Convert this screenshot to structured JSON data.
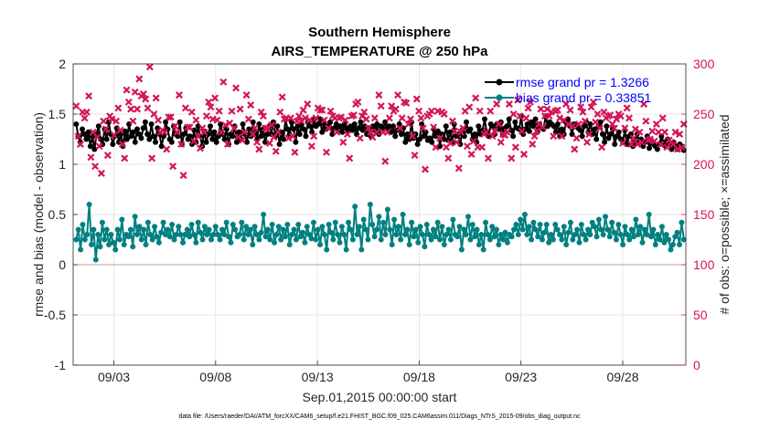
{
  "chart_data": {
    "type": "line",
    "title": "Southern Hemisphere",
    "subtitle": "AIRS_TEMPERATURE @ 250 hPa",
    "xlabel": "Sep.01,2015 00:00:00 start",
    "ylabel": "rmse and bias (model - observation)",
    "ylabel_right": "# of obs: o=possible; ×=assimilated",
    "ylim": [
      -1,
      2
    ],
    "ylim_right": [
      0,
      300
    ],
    "xlim": [
      1.0,
      31.1
    ],
    "yticks": [
      "-1",
      "-0.5",
      "0",
      "0.5",
      "1",
      "1.5",
      "2"
    ],
    "yticks_right": [
      "0",
      "50",
      "100",
      "150",
      "200",
      "250",
      "300"
    ],
    "xticks": [
      {
        "label": "09/03",
        "x": 3
      },
      {
        "label": "09/08",
        "x": 8
      },
      {
        "label": "09/13",
        "x": 13
      },
      {
        "label": "09/18",
        "x": 18
      },
      {
        "label": "09/23",
        "x": 23
      },
      {
        "label": "09/28",
        "x": 28
      }
    ],
    "legend": [
      {
        "label": "rmse grand pr = 1.3266",
        "color": "#000000"
      },
      {
        "label": "bias grand pr = 0.33851",
        "color": "#008080"
      }
    ],
    "series": [
      {
        "name": "rmse",
        "axis": "left",
        "color": "#000000",
        "values": [
          1.4,
          1.28,
          1.22,
          1.35,
          1.3,
          1.25,
          1.32,
          1.18,
          1.28,
          1.15,
          1.3,
          1.38,
          1.25,
          1.2,
          1.35,
          1.25,
          1.42,
          1.3,
          1.2,
          1.28,
          1.36,
          1.22,
          1.3,
          1.18,
          1.33,
          1.25,
          1.4,
          1.28,
          1.32,
          1.22,
          1.35,
          1.3,
          1.26,
          1.36,
          1.42,
          1.3,
          1.25,
          1.4,
          1.28,
          1.22,
          1.36,
          1.3,
          1.18,
          1.28,
          1.42,
          1.35,
          1.25,
          1.22,
          1.38,
          1.3,
          1.28,
          1.42,
          1.2,
          1.3,
          1.36,
          1.25,
          1.28,
          1.2,
          1.34,
          1.22,
          1.38,
          1.28,
          1.18,
          1.33,
          1.22,
          1.3,
          1.38,
          1.25,
          1.32,
          1.22,
          1.28,
          1.4,
          1.3,
          1.25,
          1.35,
          1.2,
          1.3,
          1.28,
          1.38,
          1.22,
          1.32,
          1.25,
          1.4,
          1.3,
          1.22,
          1.35,
          1.28,
          1.42,
          1.32,
          1.25,
          1.4,
          1.28,
          1.35,
          1.22,
          1.3,
          1.38,
          1.3,
          1.42,
          1.28,
          1.38,
          1.2,
          1.32,
          1.25,
          1.45,
          1.35,
          1.3,
          1.42,
          1.35,
          1.22,
          1.38,
          1.3,
          1.4,
          1.35,
          1.28,
          1.42,
          1.38,
          1.32,
          1.45,
          1.38,
          1.4,
          1.45,
          1.32,
          1.4,
          1.35,
          1.38,
          1.42,
          1.3,
          1.36,
          1.4,
          1.34,
          1.38,
          1.32,
          1.4,
          1.36,
          1.33,
          1.38,
          1.34,
          1.4,
          1.3,
          1.36,
          1.42,
          1.34,
          1.38,
          1.3,
          1.36,
          1.28,
          1.38,
          1.34,
          1.4,
          1.3,
          1.38,
          1.35,
          1.42,
          1.36,
          1.38,
          1.32,
          1.38,
          1.28,
          1.34,
          1.4,
          1.3,
          1.36,
          1.22,
          1.3,
          1.25,
          1.42,
          1.26,
          1.3,
          1.2,
          1.25,
          1.4,
          1.28,
          1.32,
          1.24,
          1.26,
          1.22,
          1.35,
          1.28,
          1.33,
          1.18,
          1.3,
          1.25,
          1.38,
          1.24,
          1.32,
          1.22,
          1.4,
          1.28,
          1.3,
          1.2,
          1.34,
          1.28,
          1.42,
          1.33,
          1.35,
          1.25,
          1.3,
          1.22,
          1.38,
          1.3,
          1.34,
          1.45,
          1.32,
          1.28,
          1.4,
          1.38,
          1.3,
          1.4,
          1.35,
          1.42,
          1.3,
          1.36,
          1.38,
          1.45,
          1.34,
          1.28,
          1.42,
          1.36,
          1.35,
          1.48,
          1.3,
          1.35,
          1.4,
          1.33,
          1.42,
          1.38,
          1.45,
          1.32,
          1.4,
          1.36,
          1.35,
          1.48,
          1.38,
          1.42,
          1.4,
          1.38,
          1.32,
          1.4,
          1.28,
          1.35,
          1.3,
          1.42,
          1.45,
          1.38,
          1.3,
          1.4,
          1.4,
          1.36,
          1.34,
          1.28,
          1.38,
          1.42,
          1.32,
          1.4,
          1.3,
          1.35,
          1.25,
          1.38,
          1.42,
          1.3,
          1.22,
          1.38,
          1.26,
          1.3,
          1.35,
          1.2,
          1.28,
          1.32,
          1.25,
          1.22,
          1.34,
          1.2,
          1.28,
          1.3,
          1.18,
          1.22,
          1.3,
          1.22,
          1.25,
          1.18,
          1.22,
          1.28,
          1.16,
          1.24,
          1.2,
          1.18,
          1.15,
          1.2,
          1.28,
          1.22,
          1.18,
          1.25,
          1.2,
          1.15,
          1.22,
          1.18,
          1.15,
          1.2,
          1.18,
          1.14
        ]
      },
      {
        "name": "bias",
        "axis": "left",
        "color": "#008080",
        "values": [
          0.25,
          0.35,
          0.15,
          0.4,
          0.25,
          0.3,
          0.6,
          0.2,
          0.35,
          0.05,
          0.3,
          0.18,
          0.42,
          0.25,
          0.35,
          0.2,
          0.3,
          0.22,
          0.15,
          0.35,
          0.25,
          0.45,
          0.2,
          0.3,
          0.28,
          0.35,
          0.18,
          0.48,
          0.3,
          0.38,
          0.25,
          0.35,
          0.2,
          0.42,
          0.3,
          0.25,
          0.38,
          0.28,
          0.22,
          0.32,
          0.42,
          0.3,
          0.35,
          0.28,
          0.4,
          0.25,
          0.3,
          0.38,
          0.3,
          0.22,
          0.3,
          0.35,
          0.28,
          0.4,
          0.3,
          0.22,
          0.42,
          0.32,
          0.25,
          0.38,
          0.3,
          0.35,
          0.25,
          0.3,
          0.38,
          0.3,
          0.25,
          0.35,
          0.3,
          0.42,
          0.28,
          0.22,
          0.4,
          0.35,
          0.28,
          0.3,
          0.42,
          0.25,
          0.38,
          0.3,
          0.35,
          0.2,
          0.38,
          0.3,
          0.25,
          0.32,
          0.5,
          0.28,
          0.35,
          0.25,
          0.4,
          0.22,
          0.3,
          0.38,
          0.25,
          0.35,
          0.28,
          0.4,
          0.2,
          0.3,
          0.35,
          0.25,
          0.4,
          0.28,
          0.32,
          0.22,
          0.38,
          0.3,
          0.26,
          0.42,
          0.25,
          0.35,
          0.2,
          0.38,
          0.3,
          0.15,
          0.4,
          0.32,
          0.25,
          0.42,
          0.3,
          0.22,
          0.38,
          0.3,
          0.15,
          0.42,
          0.35,
          0.25,
          0.58,
          0.3,
          0.38,
          0.15,
          0.45,
          0.35,
          0.25,
          0.6,
          0.4,
          0.28,
          0.35,
          0.48,
          0.25,
          0.42,
          0.3,
          0.55,
          0.35,
          0.2,
          0.45,
          0.3,
          0.38,
          0.25,
          0.5,
          0.3,
          0.35,
          0.2,
          0.42,
          0.28,
          0.35,
          0.22,
          0.38,
          0.3,
          0.18,
          0.4,
          0.3,
          0.25,
          0.35,
          0.28,
          0.42,
          0.25,
          0.38,
          0.2,
          0.3,
          0.35,
          0.25,
          0.45,
          0.3,
          0.28,
          0.38,
          0.15,
          0.35,
          0.3,
          0.48,
          0.25,
          0.4,
          0.28,
          0.35,
          0.2,
          0.3,
          0.15,
          0.42,
          0.3,
          0.25,
          0.38,
          0.28,
          0.35,
          0.2,
          0.3,
          0.25,
          0.32,
          0.22,
          0.3,
          0.28,
          0.35,
          0.4,
          0.3,
          0.45,
          0.35,
          0.5,
          0.3,
          0.38,
          0.25,
          0.42,
          0.35,
          0.28,
          0.4,
          0.25,
          0.32,
          0.4,
          0.22,
          0.3,
          0.25,
          0.4,
          0.35,
          0.3,
          0.25,
          0.38,
          0.2,
          0.32,
          0.42,
          0.25,
          0.3,
          0.35,
          0.22,
          0.4,
          0.3,
          0.25,
          0.35,
          0.3,
          0.42,
          0.38,
          0.28,
          0.45,
          0.35,
          0.3,
          0.48,
          0.35,
          0.28,
          0.42,
          0.32,
          0.25,
          0.4,
          0.3,
          0.2,
          0.38,
          0.3,
          0.25,
          0.35,
          0.28,
          0.45,
          0.3,
          0.38,
          0.22,
          0.35,
          0.3,
          0.5,
          0.28,
          0.35,
          0.2,
          0.3,
          0.25,
          0.38,
          0.22,
          0.3,
          0.25,
          0.15,
          0.2,
          0.28,
          0.32,
          0.2,
          0.42,
          0.25
        ]
      },
      {
        "name": "obs_assimilated",
        "axis": "right",
        "color": "#d4145a",
        "marker": "x",
        "values": [
          258,
          228,
          220,
          252,
          246,
          252,
          268,
          207,
          232,
          198,
          227,
          218,
          191,
          243,
          235,
          209,
          248,
          245,
          229,
          243,
          256,
          234,
          220,
          206,
          274,
          262,
          255,
          243,
          272,
          255,
          285,
          268,
          270,
          265,
          256,
          297,
          206,
          250,
          266,
          244,
          232,
          234,
          232,
          215,
          247,
          247,
          198,
          238,
          232,
          269,
          220,
          189,
          256,
          237,
          237,
          252,
          223,
          244,
          228,
          216,
          236,
          232,
          248,
          262,
          257,
          245,
          266,
          244,
          253,
          232,
          282,
          239,
          220,
          241,
          253,
          236,
          276,
          227,
          255,
          224,
          232,
          269,
          245,
          259,
          230,
          236,
          222,
          215,
          252,
          248,
          236,
          236,
          221,
          239,
          227,
          213,
          232,
          252,
          267,
          245,
          246,
          226,
          246,
          228,
          212,
          243,
          248,
          243,
          254,
          246,
          260,
          244,
          218,
          228,
          246,
          256,
          254,
          254,
          244,
          212,
          236,
          253,
          248,
          246,
          232,
          246,
          247,
          222,
          244,
          230,
          206,
          248,
          249,
          260,
          262,
          226,
          248,
          252,
          245,
          236,
          232,
          227,
          246,
          232,
          269,
          258,
          232,
          203,
          232,
          246,
          258,
          253,
          255,
          269,
          236,
          246,
          262,
          261,
          240,
          245,
          228,
          209,
          265,
          253,
          246,
          236,
          195,
          248,
          250,
          253,
          237,
          217,
          253,
          226,
          252,
          250,
          217,
          206,
          221,
          243,
          233,
          222,
          196,
          232,
          236,
          253,
          218,
          257,
          210,
          223,
          266,
          217,
          253,
          217,
          230,
          232,
          206,
          253,
          228,
          233,
          260,
          240,
          222,
          230,
          229,
          232,
          260,
          206,
          250,
          217,
          264,
          248,
          233,
          210,
          246,
          256,
          262,
          220,
          228,
          233,
          240,
          255,
          237,
          248,
          255,
          248,
          252,
          228,
          253,
          254,
          246,
          228,
          244,
          260,
          240,
          254,
          238,
          215,
          226,
          240,
          257,
          252,
          243,
          222,
          230,
          257,
          262,
          242,
          250,
          236,
          217,
          252,
          246,
          248,
          249,
          240,
          236,
          245,
          250,
          248,
          221,
          236,
          256,
          246,
          220,
          226,
          235,
          220,
          232,
          222,
          260,
          243,
          224,
          225,
          233,
          223,
          240,
          232,
          220,
          246,
          232,
          217,
          224,
          222,
          220,
          232,
          215,
          230,
          217,
          240
        ]
      }
    ],
    "footnote": "data file: /Users/raeder/DAI/ATM_forcXX/CAM6_setup/f.e21.FHIST_BGC.f09_025.CAM6assim.011/Diags_NTrS_2015-09/obs_diag_output.nc"
  }
}
